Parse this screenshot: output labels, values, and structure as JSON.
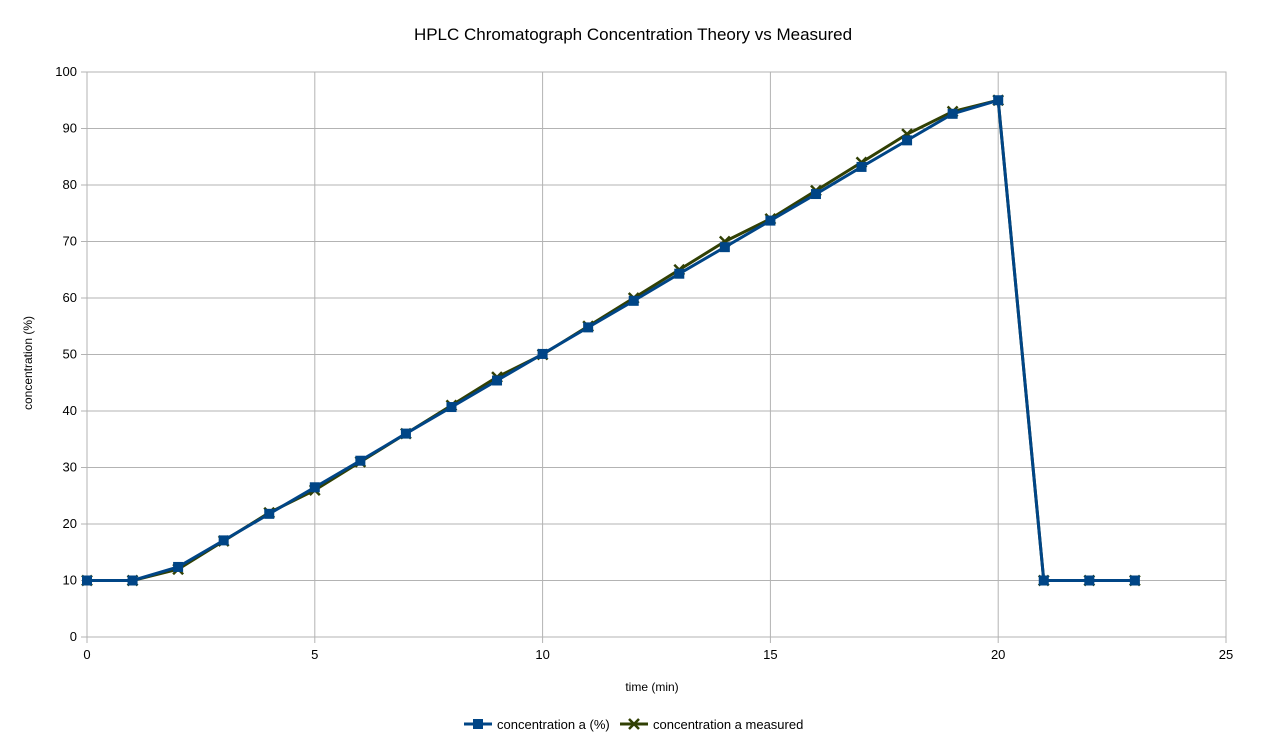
{
  "chart_data": {
    "type": "line",
    "title": "HPLC Chromatograph Concentration Theory vs Measured",
    "xlabel": "time (min)",
    "ylabel": "concentration (%)",
    "xlim": [
      0,
      25
    ],
    "ylim": [
      0,
      100
    ],
    "xticks": [
      0,
      5,
      10,
      15,
      20,
      25
    ],
    "yticks": [
      0,
      10,
      20,
      30,
      40,
      50,
      60,
      70,
      80,
      90,
      100
    ],
    "grid": true,
    "legend_position": "bottom",
    "series": [
      {
        "name": "concentration a (%)",
        "color": "#004586",
        "marker": "square",
        "x": [
          0,
          1,
          2,
          3,
          4,
          5,
          6,
          7,
          8,
          9,
          10,
          11,
          12,
          13,
          14,
          15,
          16,
          17,
          18,
          19,
          20,
          21,
          22,
          23
        ],
        "y": [
          10,
          10,
          12.4,
          17.1,
          21.8,
          26.5,
          31.2,
          36,
          40.7,
          45.4,
          50.1,
          54.8,
          59.5,
          64.3,
          69,
          73.7,
          78.4,
          83.2,
          87.9,
          92.6,
          95,
          10,
          10,
          10
        ]
      },
      {
        "name": "concentration a measured",
        "color": "#314004",
        "marker": "x",
        "x": [
          0,
          1,
          2,
          3,
          4,
          5,
          6,
          7,
          8,
          9,
          10,
          11,
          12,
          13,
          14,
          15,
          16,
          17,
          18,
          19,
          20,
          21,
          22,
          23
        ],
        "y": [
          10,
          10,
          12,
          17,
          22,
          26,
          31,
          36,
          41,
          46,
          50,
          55,
          60,
          65,
          70,
          74,
          79,
          84,
          89,
          93,
          95,
          10,
          10,
          10
        ]
      }
    ]
  }
}
